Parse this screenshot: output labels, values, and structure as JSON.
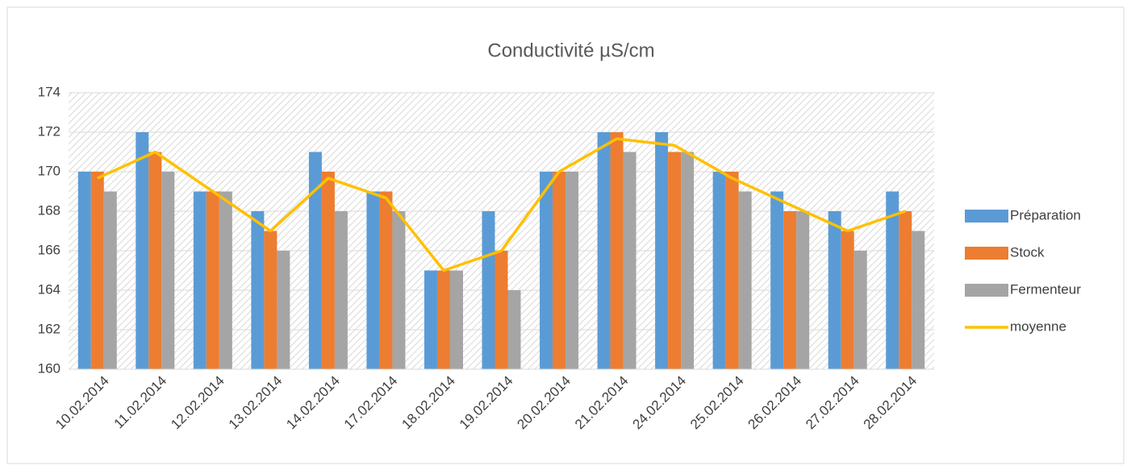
{
  "chart_data": {
    "type": "bar",
    "title": "Conductivité µS/cm",
    "categories": [
      "10.02.2014",
      "11.02.2014",
      "12.02.2014",
      "13.02.2014",
      "14.02.2014",
      "17.02.2014",
      "18.02.2014",
      "19.02.2014",
      "20.02.2014",
      "21.02.2014",
      "24.02.2014",
      "25.02.2014",
      "26.02.2014",
      "27.02.2014",
      "28.02.2014"
    ],
    "series": [
      {
        "name": "Préparation",
        "color": "#5B9BD5",
        "values": [
          170,
          172,
          169,
          168,
          171,
          169,
          165,
          168,
          170,
          172,
          172,
          170,
          169,
          168,
          169
        ]
      },
      {
        "name": "Stock",
        "color": "#ED7D31",
        "values": [
          170,
          171,
          169,
          167,
          170,
          169,
          165,
          166,
          170,
          172,
          171,
          170,
          168,
          167,
          168
        ]
      },
      {
        "name": "Fermenteur",
        "color": "#A5A5A5",
        "values": [
          169,
          170,
          169,
          166,
          168,
          168,
          165,
          164,
          170,
          171,
          171,
          169,
          168,
          166,
          167
        ]
      },
      {
        "name": "moyenne",
        "color": "#FFC000",
        "type": "line",
        "values": [
          169.67,
          171,
          169,
          167,
          169.67,
          168.67,
          165,
          166,
          170,
          171.67,
          171.33,
          169.67,
          168.33,
          167,
          168
        ]
      }
    ],
    "ylim": [
      160,
      174
    ],
    "yticks": [
      160,
      162,
      164,
      166,
      168,
      170,
      172,
      174
    ],
    "grid": true,
    "legend": "right"
  }
}
